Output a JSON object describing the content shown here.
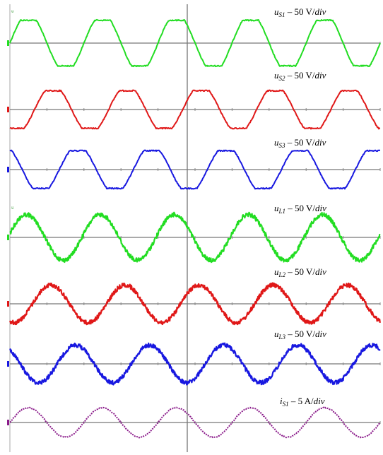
{
  "chart_data": {
    "type": "line",
    "x_cycles": 5,
    "grid": "center cross only",
    "channel_tag": "ᵾ",
    "series": [
      {
        "label": "u_S1",
        "label_main": "u",
        "label_sub": "S1",
        "label_unit": " – 50 V/",
        "label_div": "div",
        "color": "#22dd22",
        "amplitude_div": 0.85,
        "shape": "clipped-sine",
        "noise": "low",
        "phase_deg": 0
      },
      {
        "label": "u_S2",
        "label_main": "u",
        "label_sub": "S2",
        "label_unit": " – 50 V/",
        "label_div": "div",
        "color": "#e01818",
        "amplitude_div": 0.7,
        "shape": "clipped-sine",
        "noise": "low",
        "phase_deg": -120
      },
      {
        "label": "u_S3",
        "label_main": "u",
        "label_sub": "S3",
        "label_unit": " – 50 V/",
        "label_div": "div",
        "color": "#1818e0",
        "amplitude_div": 0.7,
        "shape": "clipped-sine",
        "noise": "low",
        "phase_deg": 120
      },
      {
        "label": "u_L1",
        "label_main": "u",
        "label_sub": "L1",
        "label_unit": " – 50 V/",
        "label_div": "div",
        "color": "#22dd22",
        "amplitude_div": 0.85,
        "shape": "sine",
        "noise": "high",
        "phase_deg": 10
      },
      {
        "label": "u_L2",
        "label_main": "u",
        "label_sub": "L2",
        "label_unit": " – 50 V/",
        "label_div": "div",
        "color": "#e01818",
        "amplitude_div": 0.7,
        "shape": "sine",
        "noise": "high",
        "phase_deg": -110
      },
      {
        "label": "u_L3",
        "label_main": "u",
        "label_sub": "L3",
        "label_unit": " – 50 V/",
        "label_div": "div",
        "color": "#1818e0",
        "amplitude_div": 0.7,
        "shape": "sine",
        "noise": "high",
        "phase_deg": 130
      },
      {
        "label": "i_S1",
        "label_main": "i",
        "label_sub": "S1",
        "label_unit": " – 5 A/",
        "label_div": "div",
        "color": "#8a1a8a",
        "amplitude_div": 0.55,
        "shape": "sine",
        "noise": "dotted",
        "phase_deg": 0
      }
    ]
  }
}
